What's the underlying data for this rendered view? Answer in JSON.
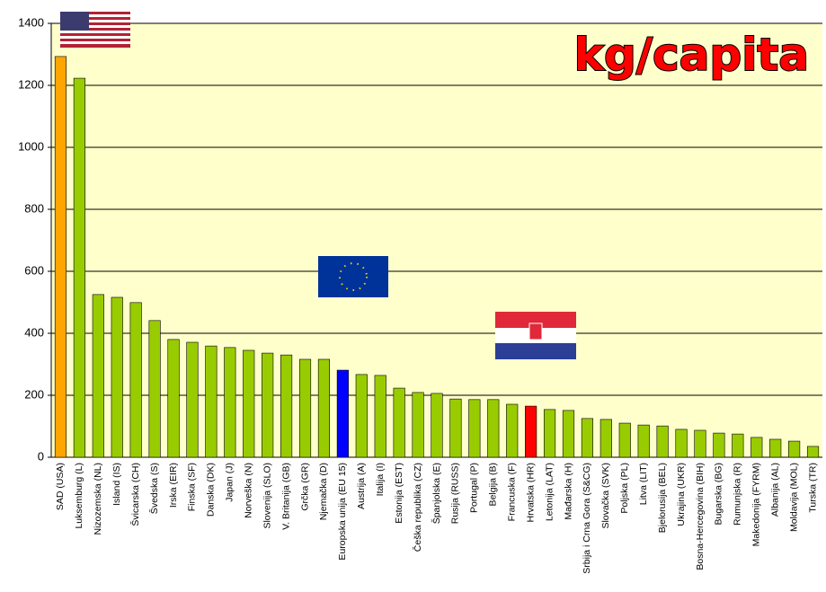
{
  "chart_data": {
    "type": "bar",
    "title": "kg/capita",
    "categories": [
      "SAD (USA)",
      "Luksemburg (L)",
      "Nizozemska (NL)",
      "Island (IS)",
      "Švicarska (CH)",
      "Švedska (S)",
      "Irska (EIR)",
      "Finska (SF)",
      "Danska (DK)",
      "Japan (J)",
      "Norveška (N)",
      "Slovenija (SLO)",
      "V. Britanija (GB)",
      "Grčka (GR)",
      "Njemačka (D)",
      "Europska unija (EU 15)",
      "Austrija (A)",
      "Italija (I)",
      "Estonija (EST)",
      "Češka republika (CZ)",
      "Španjolska (E)",
      "Rusija (RUSS)",
      "Portugal (P)",
      "Belgija (B)",
      "Francuska (F)",
      "Hrvatska (HR)",
      "Letonija (LAT)",
      "Mađarska (H)",
      "Srbija i Crna Gora (S&CG)",
      "Slovačka (SVK)",
      "Poljska (PL)",
      "Litva (LIT)",
      "Bjelorusija (BEL)",
      "Ukrajina (UKR)",
      "Bosna-Hercegovina (BIH)",
      "Bugarska (BG)",
      "Rumunjska (R)",
      "Makedonija (FYRM)",
      "Albanija (AL)",
      "Moldavija (MOL)",
      "Turska (TR)"
    ],
    "values": [
      1293,
      1223,
      525,
      516,
      499,
      441,
      380,
      371,
      359,
      354,
      345,
      336,
      330,
      316,
      316,
      281,
      267,
      264,
      223,
      209,
      206,
      188,
      186,
      186,
      171,
      165,
      154,
      151,
      125,
      122,
      110,
      104,
      101,
      90,
      87,
      78,
      75,
      64,
      58,
      52,
      35
    ],
    "colors": [
      "#ffa500",
      "#99cc00",
      "#99cc00",
      "#99cc00",
      "#99cc00",
      "#99cc00",
      "#99cc00",
      "#99cc00",
      "#99cc00",
      "#99cc00",
      "#99cc00",
      "#99cc00",
      "#99cc00",
      "#99cc00",
      "#99cc00",
      "#0000ff",
      "#99cc00",
      "#99cc00",
      "#99cc00",
      "#99cc00",
      "#99cc00",
      "#99cc00",
      "#99cc00",
      "#99cc00",
      "#99cc00",
      "#ff0000",
      "#99cc00",
      "#99cc00",
      "#99cc00",
      "#99cc00",
      "#99cc00",
      "#99cc00",
      "#99cc00",
      "#99cc00",
      "#99cc00",
      "#99cc00",
      "#99cc00",
      "#99cc00",
      "#99cc00",
      "#99cc00",
      "#99cc00"
    ],
    "ylim": [
      0,
      1400
    ],
    "yticks": [
      0,
      200,
      400,
      600,
      800,
      1000,
      1200,
      1400
    ],
    "grid": true
  }
}
